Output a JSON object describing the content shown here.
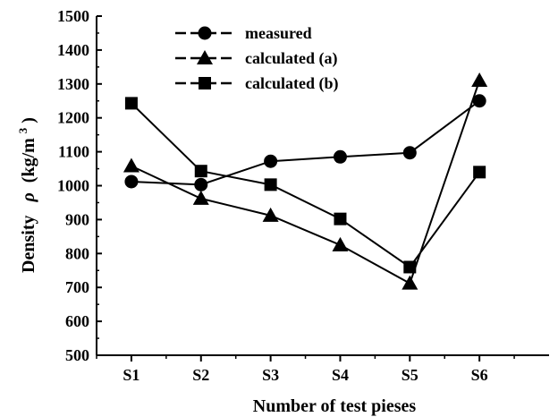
{
  "chart_data": {
    "type": "line",
    "xlabel": "Number of test pieses",
    "ylabel_prefix": "Density",
    "ylabel_symbol": "ρ",
    "ylabel_unit": "(kg/m",
    "ylabel_unit_sup": "3",
    "ylabel_unit_close": ")",
    "categories": [
      "S1",
      "S2",
      "S3",
      "S4",
      "S5",
      "S6"
    ],
    "ylim": [
      500,
      1500
    ],
    "yticks": [
      500,
      600,
      700,
      800,
      900,
      1000,
      1100,
      1200,
      1300,
      1400,
      1500
    ],
    "grid": false,
    "legend_position": "top-left",
    "series": [
      {
        "name": "measured",
        "marker": "circle",
        "values": [
          1012,
          1003,
          1072,
          1085,
          1097,
          1250
        ]
      },
      {
        "name": "calculated (a)",
        "marker": "triangle",
        "values": [
          1058,
          962,
          912,
          825,
          712,
          1310
        ]
      },
      {
        "name": "calculated (b)",
        "marker": "square",
        "values": [
          1243,
          1043,
          1003,
          902,
          760,
          1040
        ]
      }
    ],
    "colors": {
      "line": "#000000",
      "marker": "#000000"
    }
  }
}
